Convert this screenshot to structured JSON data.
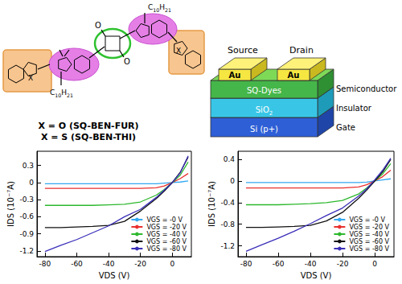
{
  "structure": {
    "hetero_left": "X",
    "hetero_right": "X",
    "oxygen_top": "O",
    "oxygen_bottom": "O",
    "chain_left": "C10H21",
    "chain_right": "C10H21",
    "captions": [
      "X = O (SQ-BEN-FUR)",
      "X = S (SQ-BEN-THI)"
    ]
  },
  "device": {
    "electrodes": [
      {
        "name": "Source",
        "label": "Au"
      },
      {
        "name": "Drain",
        "label": "Au"
      }
    ],
    "layers": [
      {
        "label": "SQ-Dyes",
        "role": "Semiconductor"
      },
      {
        "label": "SiO2",
        "role": "Insulator"
      },
      {
        "label": "Si (p+)",
        "role": "Gate"
      }
    ]
  },
  "chart_data": [
    {
      "type": "line",
      "x_label": "VDS (V)",
      "y_label": "IDS (10⁻⁷A)",
      "x": [
        -80,
        -70,
        -60,
        -50,
        -40,
        -30,
        -20,
        -10,
        -5,
        0,
        5,
        10
      ],
      "series": [
        {
          "name": "VGS = -0 V",
          "color": "#33a8f0",
          "values": [
            -0.02,
            -0.02,
            -0.02,
            -0.02,
            -0.02,
            -0.02,
            -0.02,
            -0.02,
            -0.01,
            0,
            0.01,
            0.03
          ]
        },
        {
          "name": "VGS = -20 V",
          "color": "#e8312f",
          "values": [
            -0.1,
            -0.1,
            -0.1,
            -0.1,
            -0.1,
            -0.1,
            -0.1,
            -0.09,
            -0.06,
            0,
            0.07,
            0.16
          ]
        },
        {
          "name": "VGS = -40 V",
          "color": "#2db82d",
          "values": [
            -0.4,
            -0.4,
            -0.4,
            -0.4,
            -0.39,
            -0.38,
            -0.34,
            -0.22,
            -0.12,
            0,
            0.13,
            0.36
          ]
        },
        {
          "name": "VGS = -60 V",
          "color": "#111111",
          "values": [
            -0.79,
            -0.79,
            -0.78,
            -0.77,
            -0.75,
            -0.68,
            -0.5,
            -0.28,
            -0.15,
            0,
            0.18,
            0.45
          ]
        },
        {
          "name": "VGS = -80 V",
          "color": "#3a2fb8",
          "values": [
            -1.21,
            -1.1,
            -1.0,
            -0.88,
            -0.76,
            -0.6,
            -0.47,
            -0.26,
            -0.13,
            0,
            0.17,
            0.47
          ]
        }
      ],
      "xlim": [
        -85,
        12
      ],
      "xticks": [
        -80,
        -60,
        -40,
        -20,
        0
      ],
      "ylim": [
        -1.3,
        0.55
      ],
      "yticks": [
        -1.2,
        -0.9,
        -0.6,
        -0.3,
        0,
        0.3
      ],
      "grid": false,
      "legend": "lower right"
    },
    {
      "type": "line",
      "x_label": "VDS (V)",
      "y_label": "IDS (10⁻⁷A)",
      "x": [
        -80,
        -70,
        -60,
        -50,
        -40,
        -30,
        -20,
        -10,
        -5,
        0,
        5,
        10
      ],
      "series": [
        {
          "name": "VGS = -0 V",
          "color": "#33a8f0",
          "values": [
            -0.03,
            -0.03,
            -0.03,
            -0.03,
            -0.03,
            -0.03,
            -0.03,
            -0.03,
            -0.02,
            0,
            0.02,
            0.04
          ]
        },
        {
          "name": "VGS = -20 V",
          "color": "#e8312f",
          "values": [
            -0.13,
            -0.13,
            -0.13,
            -0.13,
            -0.13,
            -0.13,
            -0.13,
            -0.11,
            -0.07,
            0,
            0.08,
            0.2
          ]
        },
        {
          "name": "VGS = -40 V",
          "color": "#2db82d",
          "values": [
            -0.44,
            -0.44,
            -0.44,
            -0.43,
            -0.42,
            -0.4,
            -0.36,
            -0.24,
            -0.13,
            0,
            0.13,
            0.32
          ]
        },
        {
          "name": "VGS = -60 V",
          "color": "#111111",
          "values": [
            -0.86,
            -0.86,
            -0.85,
            -0.84,
            -0.82,
            -0.74,
            -0.58,
            -0.32,
            -0.17,
            0,
            0.17,
            0.4
          ]
        },
        {
          "name": "VGS = -80 V",
          "color": "#3a2fb8",
          "values": [
            -1.3,
            -1.18,
            -1.06,
            -0.93,
            -0.79,
            -0.64,
            -0.5,
            -0.28,
            -0.15,
            0.02,
            0.2,
            0.42
          ]
        }
      ],
      "xlim": [
        -85,
        12
      ],
      "xticks": [
        -80,
        -60,
        -40,
        -20,
        0
      ],
      "ylim": [
        -1.4,
        0.55
      ],
      "yticks": [
        -1.2,
        -0.8,
        -0.4,
        0,
        0.4
      ],
      "grid": false,
      "legend": "lower right"
    }
  ]
}
